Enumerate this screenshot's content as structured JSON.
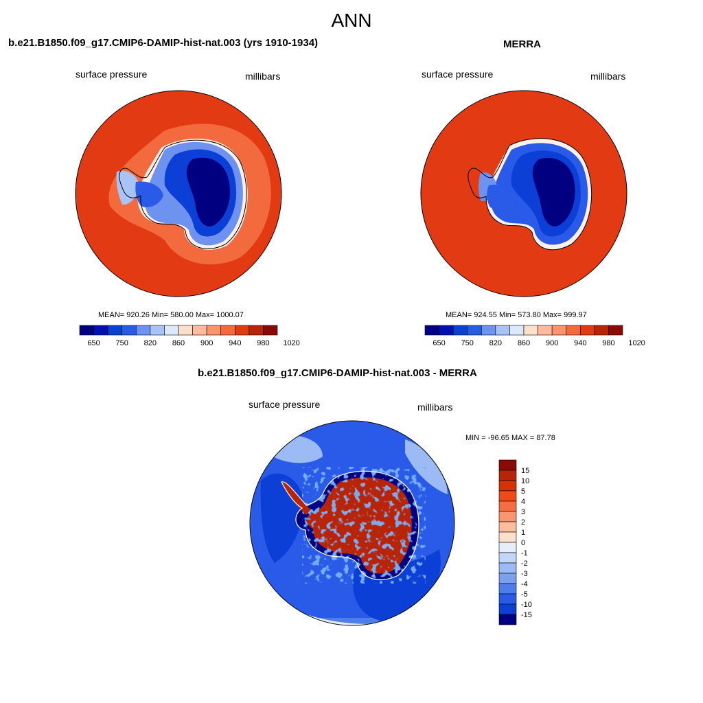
{
  "figure": {
    "title": "ANN"
  },
  "panels": {
    "model": {
      "title": "b.e21.B1850.f09_g17.CMIP6-DAMIP-hist-nat.003 (yrs 1910-1934)",
      "left_label": "surface pressure",
      "right_label": "millibars",
      "stats": "MEAN= 920.26  Min= 580.00  Max= 1000.07"
    },
    "obs": {
      "title": "MERRA",
      "left_label": "surface pressure",
      "right_label": "millibars",
      "stats": "MEAN= 924.55  Min= 573.80  Max= 999.97"
    },
    "diff": {
      "title": "b.e21.B1850.f09_g17.CMIP6-DAMIP-hist-nat.003 - MERRA",
      "left_label": "surface pressure",
      "right_label": "millibars",
      "stats": "MIN = -96.65 MAX =  87.78"
    }
  },
  "abs_colorbar": {
    "tick_labels": [
      "650",
      "750",
      "820",
      "860",
      "900",
      "940",
      "980",
      "1020"
    ],
    "colors": [
      "#000080",
      "#0010b4",
      "#0b3fd6",
      "#2a5ae8",
      "#6d92f0",
      "#a8c4f6",
      "#dce9fb",
      "#fde0cc",
      "#fcbc9d",
      "#f9946f",
      "#f46a3f",
      "#e23a12",
      "#b82408",
      "#8a0a05"
    ]
  },
  "diff_colorbar": {
    "tick_labels": [
      "15",
      "10",
      "5",
      "4",
      "3",
      "2",
      "1",
      "0",
      "-1",
      "-2",
      "-3",
      "-4",
      "-5",
      "-10",
      "-15"
    ],
    "colors": [
      "#8a0a05",
      "#b82408",
      "#d63208",
      "#f04a18",
      "#f46e44",
      "#f99670",
      "#fcbc9d",
      "#fde0cc",
      "#e6eefb",
      "#c2d6f8",
      "#9cbaf3",
      "#7aa0ee",
      "#4e7fe8",
      "#2a5ae8",
      "#0b3fd6",
      "#000080"
    ]
  }
}
